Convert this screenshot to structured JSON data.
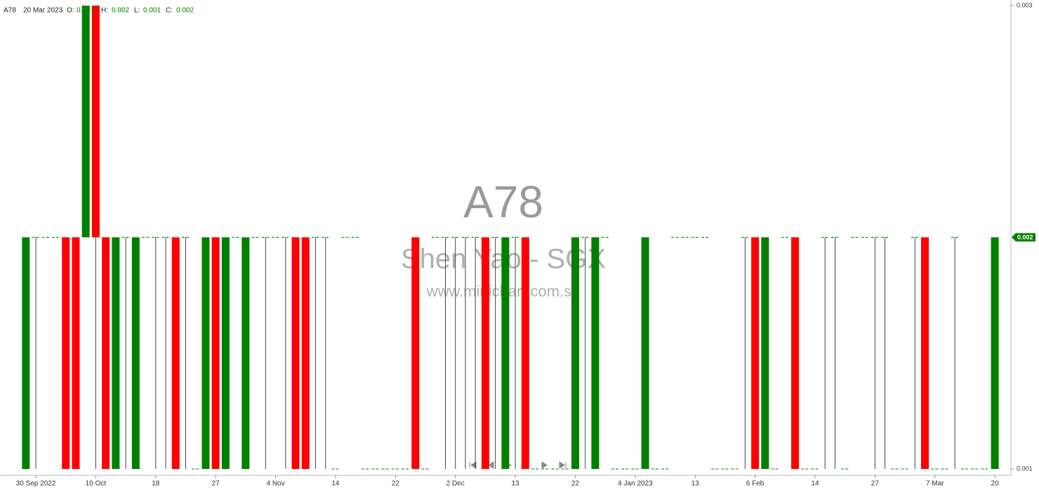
{
  "header": {
    "symbol": "A78",
    "date": "20 Mar 2023",
    "labels": [
      "O:",
      "H:",
      "L:",
      "C:"
    ]
  },
  "watermark": {
    "code": "A78",
    "name": "Shen Yao - SGX",
    "site": "www.minichart.com.sg"
  },
  "chart_data": {
    "type": "candlestick",
    "up_color": "#008000",
    "down_color": "#ff0000",
    "wick_color": "#444444",
    "ylim": [
      0.001,
      0.003
    ],
    "yticks": [
      0.001,
      0.003
    ],
    "categories": [
      null,
      "30 Sep 2022",
      null,
      null,
      null,
      null,
      null,
      "10 Oct",
      null,
      null,
      null,
      null,
      null,
      "18",
      null,
      null,
      null,
      null,
      null,
      "27",
      null,
      null,
      null,
      null,
      null,
      "4 Nov",
      null,
      null,
      null,
      null,
      null,
      "14",
      null,
      null,
      null,
      null,
      null,
      "22",
      null,
      null,
      null,
      null,
      null,
      "2 Dec",
      null,
      null,
      null,
      null,
      null,
      "13",
      null,
      null,
      null,
      null,
      null,
      "22",
      null,
      null,
      null,
      null,
      null,
      "4 Jan 2023",
      null,
      null,
      null,
      null,
      null,
      "13",
      null,
      null,
      null,
      null,
      null,
      "6 Feb",
      null,
      null,
      null,
      null,
      null,
      "14",
      null,
      null,
      null,
      null,
      null,
      "27",
      null,
      null,
      null,
      null,
      null,
      "7 Mar",
      null,
      null,
      null,
      null,
      null,
      "20"
    ],
    "open": [
      0.001,
      0.002,
      0.002,
      0.002,
      0.002,
      0.002,
      0.002,
      0.003,
      0.002,
      0.001,
      0.002,
      0.001,
      0.002,
      0.002,
      0.002,
      0.002,
      0.002,
      0.001,
      0.001,
      0.002,
      0.001,
      0.002,
      0.001,
      0.002,
      0.002,
      0.002,
      0.002,
      0.002,
      0.002,
      0.002,
      0.002,
      0.001,
      0.002,
      0.002,
      0.001,
      0.001,
      0.001,
      0.001,
      0.001,
      0.002,
      0.001,
      0.002,
      0.002,
      0.002,
      0.002,
      0.002,
      0.002,
      0.002,
      0.001,
      0.002,
      0.002,
      0.001,
      0.001,
      0.001,
      0.001,
      0.001,
      0.002,
      0.001,
      0.002,
      0.001,
      0.001,
      0.001,
      0.001,
      0.001,
      0.001,
      0.002,
      0.002,
      0.002,
      0.002,
      0.001,
      0.001,
      0.001,
      0.002,
      0.002,
      0.001,
      0.001,
      0.002,
      0.002,
      0.001,
      0.001,
      0.002,
      0.002,
      0.001,
      0.002,
      0.002,
      0.002,
      0.002,
      0.001,
      0.001,
      0.002,
      0.002,
      0.001,
      0.001,
      0.002,
      0.001,
      0.001,
      0.001,
      0.001
    ],
    "high": [
      0.002,
      0.002,
      0.002,
      0.002,
      0.002,
      0.002,
      0.003,
      0.003,
      0.002,
      0.002,
      0.002,
      0.002,
      0.002,
      0.002,
      0.002,
      0.002,
      0.002,
      0.001,
      0.002,
      0.002,
      0.002,
      0.002,
      0.002,
      0.002,
      0.002,
      0.002,
      0.002,
      0.002,
      0.002,
      0.002,
      0.002,
      0.001,
      0.002,
      0.002,
      0.001,
      0.001,
      0.001,
      0.001,
      0.001,
      0.002,
      0.001,
      0.002,
      0.002,
      0.002,
      0.002,
      0.002,
      0.002,
      0.002,
      0.002,
      0.002,
      0.002,
      0.001,
      0.001,
      0.001,
      0.001,
      0.002,
      0.002,
      0.002,
      0.002,
      0.001,
      0.001,
      0.001,
      0.002,
      0.001,
      0.001,
      0.002,
      0.002,
      0.002,
      0.002,
      0.001,
      0.001,
      0.001,
      0.002,
      0.002,
      0.002,
      0.001,
      0.002,
      0.002,
      0.001,
      0.001,
      0.002,
      0.002,
      0.001,
      0.002,
      0.002,
      0.002,
      0.002,
      0.001,
      0.001,
      0.002,
      0.002,
      0.001,
      0.001,
      0.002,
      0.001,
      0.001,
      0.001,
      0.002
    ],
    "low": [
      0.001,
      0.001,
      0.002,
      0.002,
      0.001,
      0.001,
      0.002,
      0.001,
      0.001,
      0.001,
      0.001,
      0.001,
      0.002,
      0.001,
      0.001,
      0.001,
      0.001,
      0.001,
      0.001,
      0.001,
      0.001,
      0.002,
      0.001,
      0.002,
      0.001,
      0.002,
      0.001,
      0.001,
      0.001,
      0.001,
      0.001,
      0.001,
      0.002,
      0.002,
      0.001,
      0.001,
      0.001,
      0.001,
      0.001,
      0.001,
      0.001,
      0.002,
      0.001,
      0.001,
      0.001,
      0.001,
      0.001,
      0.001,
      0.001,
      0.001,
      0.001,
      0.001,
      0.001,
      0.001,
      0.001,
      0.001,
      0.001,
      0.001,
      0.002,
      0.001,
      0.001,
      0.001,
      0.001,
      0.001,
      0.001,
      0.002,
      0.002,
      0.002,
      0.002,
      0.001,
      0.001,
      0.001,
      0.001,
      0.001,
      0.001,
      0.001,
      0.002,
      0.001,
      0.001,
      0.001,
      0.001,
      0.001,
      0.001,
      0.002,
      0.002,
      0.001,
      0.001,
      0.001,
      0.001,
      0.001,
      0.001,
      0.001,
      0.001,
      0.001,
      0.001,
      0.001,
      0.001,
      0.001
    ],
    "close": [
      0.002,
      0.002,
      0.002,
      0.002,
      0.001,
      0.001,
      0.003,
      0.002,
      0.001,
      0.002,
      0.002,
      0.002,
      0.002,
      0.002,
      0.002,
      0.001,
      0.002,
      0.001,
      0.002,
      0.001,
      0.002,
      0.002,
      0.002,
      0.002,
      0.002,
      0.002,
      0.002,
      0.001,
      0.001,
      0.002,
      0.002,
      0.001,
      0.002,
      0.002,
      0.001,
      0.001,
      0.001,
      0.001,
      0.001,
      0.001,
      0.001,
      0.002,
      0.002,
      0.002,
      0.002,
      0.002,
      0.001,
      0.002,
      0.002,
      0.002,
      0.001,
      0.001,
      0.001,
      0.001,
      0.001,
      0.002,
      0.002,
      0.002,
      0.002,
      0.001,
      0.001,
      0.001,
      0.002,
      0.001,
      0.001,
      0.002,
      0.002,
      0.002,
      0.002,
      0.001,
      0.001,
      0.001,
      0.002,
      0.001,
      0.002,
      0.001,
      0.002,
      0.001,
      0.001,
      0.001,
      0.002,
      0.002,
      0.001,
      0.002,
      0.002,
      0.002,
      0.002,
      0.001,
      0.001,
      0.002,
      0.001,
      0.001,
      0.001,
      0.002,
      0.001,
      0.001,
      0.001,
      0.002
    ]
  }
}
